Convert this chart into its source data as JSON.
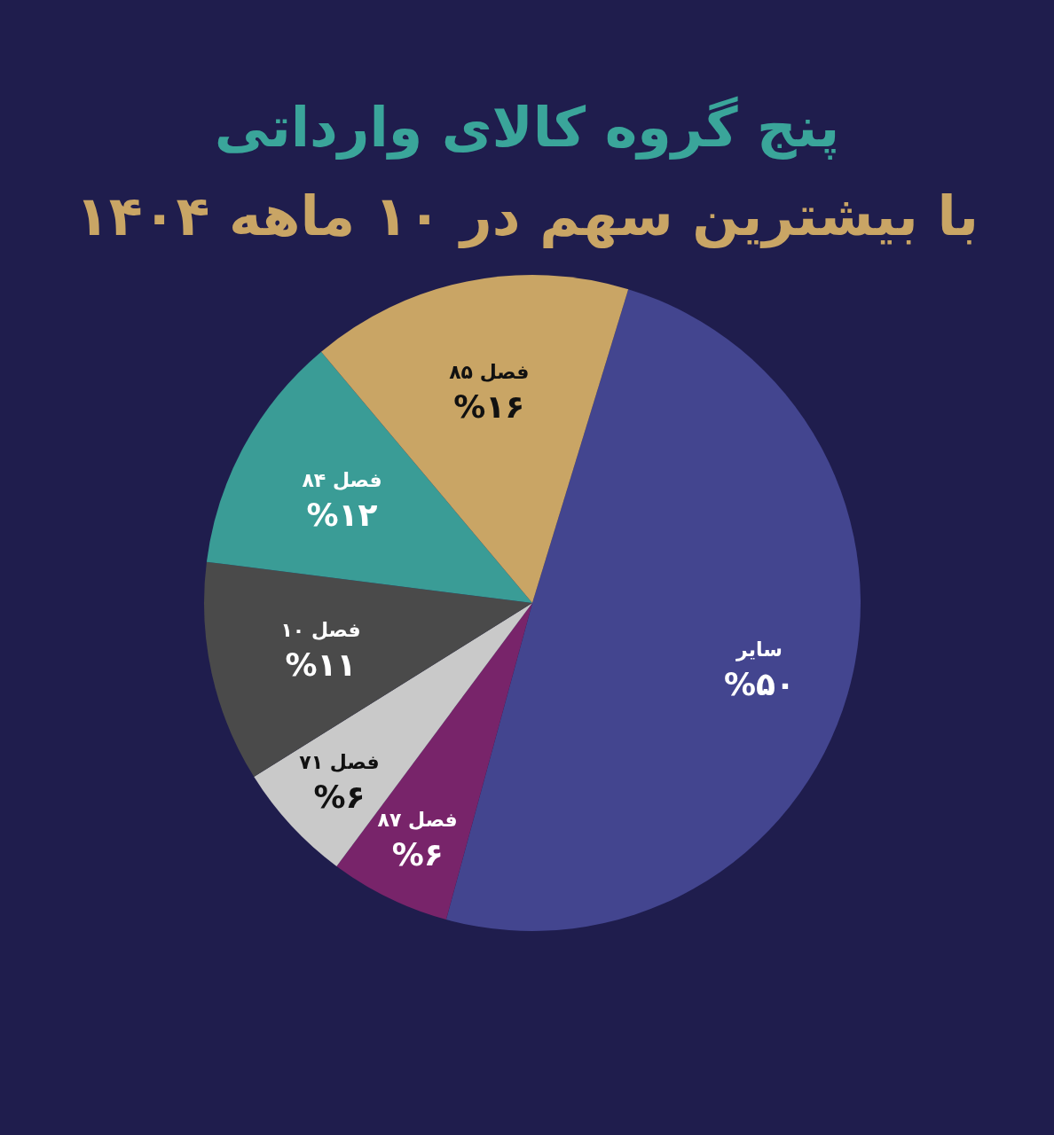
{
  "chart_data": {
    "type": "pie",
    "title": "پنج گروه کالای وارداتی",
    "subtitle": "با بیشترین سهم در ۱۰ ماهه ۱۴۰۴",
    "categories": [
      "سایر",
      "فصل ۸۷",
      "فصل ۷۱",
      "فصل ۱۰",
      "فصل ۸۴",
      "فصل ۸۵"
    ],
    "values": [
      50,
      6,
      6,
      11,
      12,
      16
    ],
    "value_labels": [
      "%۵۰",
      "%۶",
      "%۶",
      "%۱۱",
      "%۱۲",
      "%۱۶"
    ],
    "colors": [
      "#43458f",
      "#78246a",
      "#c9c9c9",
      "#4a4a4a",
      "#3a9c96",
      "#c9a565"
    ]
  }
}
